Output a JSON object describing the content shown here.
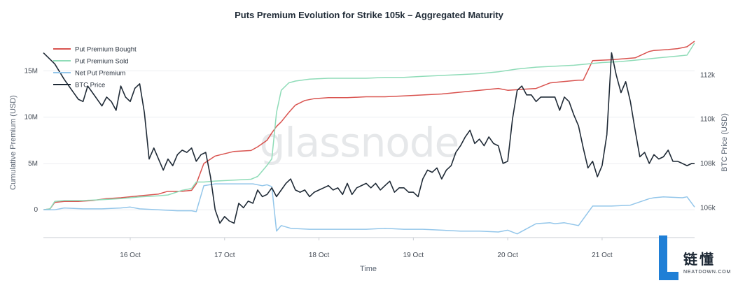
{
  "chart_data": {
    "type": "line",
    "title": "Puts Premium Evolution for Strike 105k – Aggregated Maturity",
    "xlabel": "Time",
    "ylabel_left": "Cumulative Premium (USD)",
    "ylabel_right": "BTC Price (USD)",
    "x_ticks": [
      "16 Oct",
      "17 Oct",
      "18 Oct",
      "19 Oct",
      "20 Oct",
      "21 Oct"
    ],
    "x_tick_days": [
      1,
      2,
      3,
      4,
      5,
      6
    ],
    "xlim": [
      0.08,
      6.98
    ],
    "y_left_ticks": [
      "0",
      "5M",
      "10M",
      "15M"
    ],
    "y_left_tick_values": [
      0,
      5000000,
      10000000,
      15000000
    ],
    "ylim_left": [
      -3000000,
      18500000
    ],
    "y_right_ticks": [
      "106k",
      "108k",
      "110k",
      "112k"
    ],
    "y_right_tick_values": [
      106000,
      108000,
      110000,
      112000
    ],
    "ylim_right": [
      104650,
      113650
    ],
    "grid": "horizontal",
    "legend_position": "top-left",
    "watermark": "glassnode",
    "series": [
      {
        "name": "Put Premium Bought",
        "axis": "left",
        "color": "#d9534f",
        "x": [
          0.08,
          0.15,
          0.2,
          0.3,
          0.45,
          0.6,
          0.75,
          0.9,
          1.1,
          1.3,
          1.4,
          1.55,
          1.65,
          1.7,
          1.78,
          1.9,
          2.1,
          2.28,
          2.35,
          2.45,
          2.5,
          2.55,
          2.6,
          2.68,
          2.75,
          2.85,
          2.95,
          3.1,
          3.3,
          3.5,
          3.7,
          3.9,
          4.1,
          4.3,
          4.5,
          4.7,
          4.9,
          5.0,
          5.15,
          5.3,
          5.45,
          5.55,
          5.65,
          5.75,
          5.8,
          5.9,
          6.1,
          6.35,
          6.5,
          6.55,
          6.7,
          6.8,
          6.9,
          6.98
        ],
        "y": [
          0,
          100000,
          800000,
          900000,
          900000,
          1000000,
          1200000,
          1300000,
          1500000,
          1700000,
          2000000,
          2000000,
          2100000,
          2800000,
          5000000,
          5800000,
          6300000,
          6400000,
          6800000,
          7500000,
          8300000,
          9000000,
          9500000,
          10500000,
          11300000,
          11800000,
          12000000,
          12100000,
          12100000,
          12200000,
          12200000,
          12300000,
          12400000,
          12500000,
          12700000,
          12900000,
          13100000,
          12900000,
          13000000,
          13100000,
          13700000,
          13800000,
          13900000,
          14000000,
          14000000,
          16100000,
          16200000,
          16400000,
          17100000,
          17200000,
          17300000,
          17400000,
          17600000,
          18200000
        ]
      },
      {
        "name": "Put Premium Sold",
        "axis": "left",
        "color": "#8fdcb8",
        "x": [
          0.08,
          0.15,
          0.2,
          0.3,
          0.5,
          0.7,
          0.9,
          1.1,
          1.3,
          1.4,
          1.55,
          1.65,
          1.7,
          1.78,
          1.9,
          2.1,
          2.28,
          2.35,
          2.4,
          2.45,
          2.5,
          2.55,
          2.6,
          2.68,
          2.75,
          2.9,
          3.1,
          3.3,
          3.5,
          3.7,
          3.9,
          4.1,
          4.3,
          4.5,
          4.7,
          4.9,
          5.1,
          5.3,
          5.5,
          5.7,
          5.8,
          6.0,
          6.2,
          6.4,
          6.6,
          6.8,
          6.9,
          6.98
        ],
        "y": [
          0,
          100000,
          900000,
          1000000,
          1000000,
          1100000,
          1200000,
          1400000,
          1500000,
          1600000,
          2100000,
          2300000,
          3000000,
          3000000,
          3100000,
          3200000,
          3300000,
          3600000,
          4200000,
          4800000,
          5500000,
          10500000,
          12900000,
          13700000,
          13900000,
          14100000,
          14200000,
          14200000,
          14200000,
          14300000,
          14300000,
          14400000,
          14500000,
          14600000,
          14700000,
          14900000,
          15200000,
          15400000,
          15500000,
          15600000,
          15700000,
          15900000,
          16000000,
          16200000,
          16400000,
          16600000,
          16700000,
          18000000
        ]
      },
      {
        "name": "Net Put Premium",
        "axis": "left",
        "color": "#93c6ea",
        "x": [
          0.08,
          0.2,
          0.3,
          0.5,
          0.7,
          0.9,
          1.0,
          1.1,
          1.3,
          1.5,
          1.65,
          1.7,
          1.78,
          1.9,
          2.1,
          2.3,
          2.4,
          2.45,
          2.5,
          2.55,
          2.6,
          2.7,
          2.9,
          3.1,
          3.3,
          3.5,
          3.7,
          3.9,
          4.1,
          4.3,
          4.5,
          4.7,
          4.9,
          5.0,
          5.1,
          5.3,
          5.45,
          5.5,
          5.6,
          5.65,
          5.75,
          5.9,
          6.1,
          6.3,
          6.5,
          6.55,
          6.65,
          6.85,
          6.9,
          6.98
        ],
        "y": [
          0,
          0,
          200000,
          100000,
          100000,
          200000,
          300000,
          100000,
          0,
          -100000,
          -100000,
          -200000,
          2600000,
          2800000,
          2800000,
          2800000,
          2600000,
          2700000,
          2500000,
          -2300000,
          -1700000,
          -2000000,
          -2100000,
          -2100000,
          -2100000,
          -2100000,
          -2000000,
          -2100000,
          -2100000,
          -2200000,
          -2300000,
          -2300000,
          -2400000,
          -2200000,
          -2600000,
          -1500000,
          -1400000,
          -1500000,
          -1400000,
          -1500000,
          -1700000,
          400000,
          400000,
          500000,
          1200000,
          1300000,
          1400000,
          1300000,
          1400000,
          300000
        ]
      },
      {
        "name": "BTC Price",
        "axis": "right",
        "color": "#1f2a36",
        "x": [
          0.08,
          0.2,
          0.3,
          0.4,
          0.45,
          0.5,
          0.55,
          0.6,
          0.65,
          0.7,
          0.75,
          0.8,
          0.85,
          0.9,
          0.95,
          1.0,
          1.05,
          1.1,
          1.15,
          1.2,
          1.25,
          1.3,
          1.35,
          1.4,
          1.45,
          1.5,
          1.55,
          1.6,
          1.65,
          1.7,
          1.75,
          1.8,
          1.85,
          1.9,
          1.95,
          2.0,
          2.05,
          2.1,
          2.15,
          2.2,
          2.25,
          2.3,
          2.35,
          2.4,
          2.45,
          2.5,
          2.55,
          2.6,
          2.65,
          2.7,
          2.75,
          2.8,
          2.85,
          2.9,
          2.95,
          3.0,
          3.05,
          3.1,
          3.15,
          3.2,
          3.25,
          3.3,
          3.35,
          3.4,
          3.45,
          3.5,
          3.55,
          3.6,
          3.65,
          3.7,
          3.75,
          3.8,
          3.85,
          3.9,
          3.95,
          4.0,
          4.05,
          4.1,
          4.15,
          4.2,
          4.25,
          4.3,
          4.35,
          4.4,
          4.45,
          4.5,
          4.55,
          4.6,
          4.65,
          4.7,
          4.75,
          4.8,
          4.85,
          4.9,
          4.95,
          5.0,
          5.05,
          5.1,
          5.15,
          5.2,
          5.25,
          5.3,
          5.35,
          5.4,
          5.45,
          5.5,
          5.55,
          5.6,
          5.65,
          5.7,
          5.75,
          5.8,
          5.85,
          5.9,
          5.95,
          6.0,
          6.05,
          6.1,
          6.15,
          6.2,
          6.25,
          6.3,
          6.35,
          6.4,
          6.45,
          6.5,
          6.55,
          6.6,
          6.65,
          6.7,
          6.75,
          6.8,
          6.85,
          6.9,
          6.95,
          6.98
        ],
        "y": [
          113000,
          112500,
          111800,
          111200,
          110900,
          110800,
          111500,
          111200,
          110900,
          110600,
          111000,
          110800,
          110400,
          111500,
          111000,
          110800,
          111400,
          111600,
          110300,
          108200,
          108700,
          108200,
          107700,
          108200,
          107900,
          108400,
          108600,
          108500,
          108700,
          108100,
          108400,
          108500,
          107400,
          105900,
          105300,
          105600,
          105400,
          105300,
          106200,
          106000,
          106300,
          106200,
          106800,
          106500,
          106600,
          106900,
          106500,
          106800,
          107100,
          107300,
          106800,
          106700,
          106800,
          106500,
          106700,
          106800,
          106900,
          107000,
          106800,
          106900,
          106600,
          107100,
          106600,
          106900,
          107000,
          107100,
          106900,
          107100,
          106800,
          107000,
          107200,
          106700,
          106900,
          106900,
          106700,
          106700,
          106500,
          107300,
          107700,
          107600,
          107800,
          107300,
          107700,
          107900,
          108500,
          108800,
          109200,
          109500,
          108900,
          109100,
          108800,
          109200,
          108900,
          108800,
          108000,
          108100,
          110000,
          111300,
          111500,
          111100,
          111100,
          110800,
          111000,
          111000,
          111000,
          111000,
          110400,
          111000,
          110800,
          110200,
          109700,
          108700,
          107800,
          108100,
          107400,
          107900,
          109300,
          113000,
          112000,
          111200,
          111700,
          110800,
          109500,
          108300,
          108500,
          108000,
          108400,
          108200,
          108300,
          108600,
          108100,
          108100,
          108000,
          107900,
          108000,
          108000
        ]
      }
    ]
  },
  "logo": {
    "glyph": "L",
    "chinese": "链懂",
    "domain": "NEATDOWN.COM"
  }
}
